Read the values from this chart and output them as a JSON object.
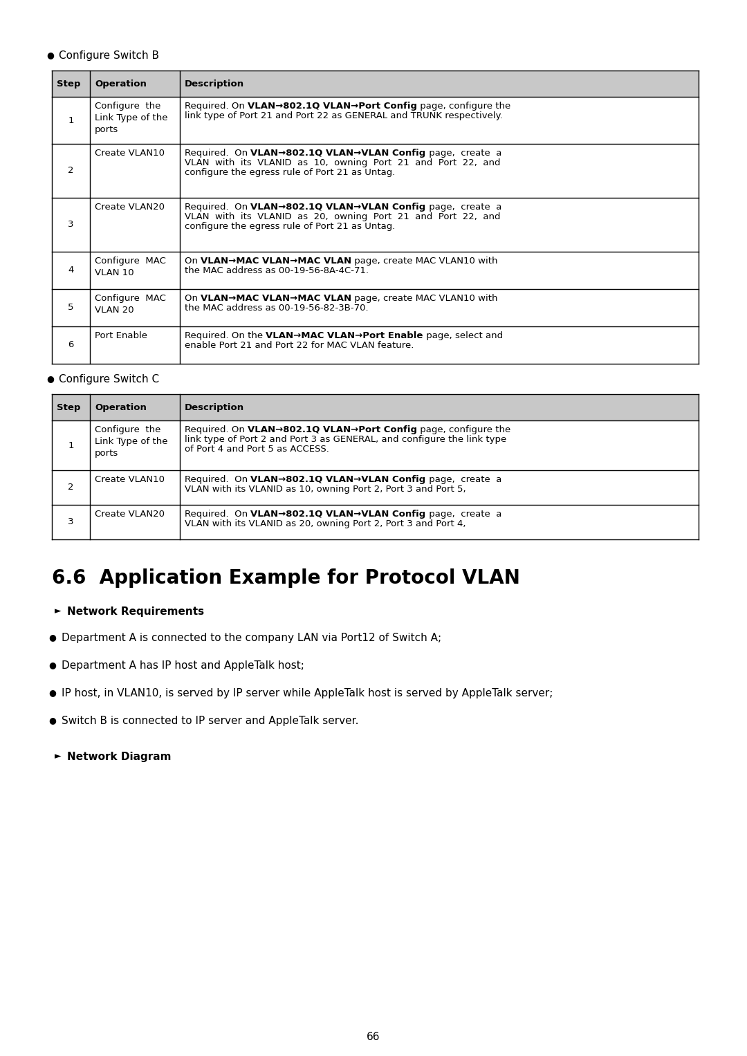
{
  "page_bg": "#ffffff",
  "page_number": "66",
  "bullet_switch_b": "Configure Switch B",
  "bullet_switch_c": "Configure Switch C",
  "table_b_header": [
    "Step",
    "Operation",
    "Description"
  ],
  "table_c_header": [
    "Step",
    "Operation",
    "Description"
  ],
  "section_title": "6.6  Application Example for Protocol VLAN",
  "arrow_label": "Network Requirements",
  "bullets": [
    "Department A is connected to the company LAN via Port12 of Switch A;",
    "Department A has IP host and AppleTalk host;",
    "IP host, in VLAN10, is served by IP server while AppleTalk host is served by AppleTalk server;",
    "Switch B is connected to IP server and AppleTalk server."
  ],
  "arrow_label2": "Network Diagram",
  "header_bg": "#c8c8c8",
  "table_border": "#000000",
  "text_color": "#000000"
}
